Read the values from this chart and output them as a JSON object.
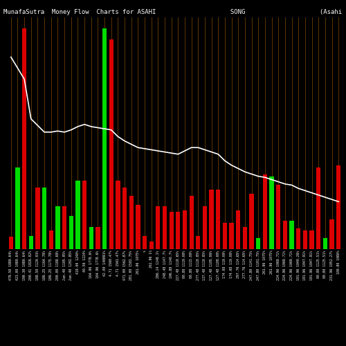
{
  "title": "MunafaSutra  Money Flow  Charts for ASAHI                    SONG                    (Asahi  Songwon  C",
  "background_color": "#000000",
  "num_bars": 50,
  "bar_values": [
    55,
    370,
    1000,
    60,
    280,
    280,
    85,
    195,
    195,
    150,
    310,
    310,
    100,
    100,
    1000,
    950,
    310,
    280,
    240,
    200,
    60,
    35,
    195,
    195,
    170,
    170,
    175,
    240,
    60,
    195,
    270,
    270,
    120,
    120,
    175,
    100,
    250,
    50,
    340,
    330,
    290,
    130,
    130,
    95,
    85,
    85,
    370,
    50,
    135,
    380
  ],
  "bar_is_green": [
    false,
    true,
    false,
    true,
    false,
    true,
    false,
    true,
    false,
    true,
    true,
    false,
    true,
    false,
    true,
    false,
    false,
    false,
    false,
    false,
    false,
    false,
    false,
    false,
    false,
    false,
    false,
    false,
    false,
    false,
    false,
    false,
    false,
    false,
    false,
    false,
    false,
    true,
    false,
    true,
    false,
    false,
    true,
    false,
    false,
    false,
    false,
    true,
    false,
    false
  ],
  "line_values": [
    870,
    820,
    770,
    590,
    560,
    530,
    530,
    535,
    530,
    540,
    555,
    565,
    555,
    550,
    545,
    540,
    510,
    490,
    475,
    460,
    455,
    450,
    445,
    440,
    435,
    430,
    445,
    460,
    460,
    450,
    440,
    430,
    400,
    380,
    365,
    350,
    340,
    330,
    325,
    315,
    305,
    295,
    290,
    275,
    265,
    255,
    245,
    235,
    225,
    215
  ],
  "x_labels": [
    "479.50 1080.64%",
    "423.00 1080.64%",
    "199.30 1080.64%",
    "200.41 1026.02%",
    "188.50 1120.03%",
    "186.25 1164.78%",
    "186.25 1175.78%",
    "200.00 1188.68%",
    "Jan.40 1195.05%",
    "Jan.40 1202.85%",
    "419.00 1240%",
    "40.56 1224%",
    "164.96 1778.6%",
    "164.96 1778.6%",
    "42.00 140891%",
    "4.71 1560.47%",
    "4.71 1561.47%",
    "471.00 1562.87%",
    "281.00 1502.75%",
    "261.96 1975%",
    "s",
    "261.96 1%",
    "286.14 1148.1%",
    "248.48 1147.7%",
    "196.88 1140.7%",
    "227.48 1119.65%",
    "00.80 1119.00%",
    "00.80 1115.00%",
    "277.48 1110.05%",
    "137.48 1110.05%",
    "127.48 1105.06%",
    "127.48 1100.00%",
    "174.08 119.00%",
    "174.08 119.00%",
    "297.76 114.65%",
    "277.76 114.65%",
    "247.80 1141.75%",
    "247.80 1101.75%",
    "261.96 1075%",
    "261.96 1075%",
    "224.96 1069.71%",
    "224.96 1069.71%",
    "224.96 1069.71%",
    "191.96 1040.26%",
    "191.96 1047.91%",
    "191.96 1047.91%",
    "00.80 1125.51%",
    "00.80 1125.51%",
    "231.96 1052.27%",
    "100.80 1080%"
  ],
  "line_color": "#ffffff",
  "red_color": "#dd0000",
  "green_color": "#00dd00",
  "text_color": "#ffffff",
  "grid_color": "#7a4400",
  "title_fontsize": 6.5,
  "label_fontsize": 3.5,
  "figsize": [
    5.0,
    5.0
  ],
  "dpi": 100
}
